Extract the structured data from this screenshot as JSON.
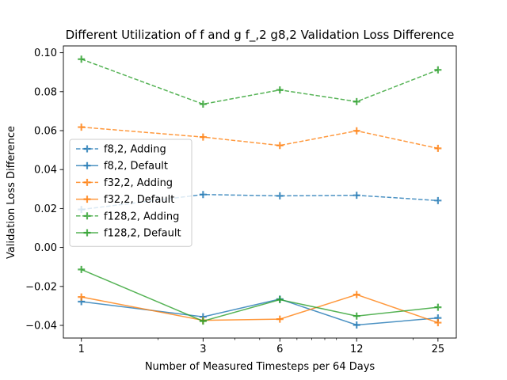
{
  "chart_data": {
    "type": "line",
    "title": "Different Utilization of f and g f_,2 g8,2 Validation Loss Difference",
    "xlabel": "Number of Measured Timesteps per 64 Days",
    "ylabel": "Validation Loss Difference",
    "x_scale": "log",
    "x": [
      1,
      3,
      6,
      12,
      25
    ],
    "x_tick_labels": [
      "1",
      "3",
      "6",
      "12",
      "25"
    ],
    "xlim": [
      0.85,
      29.5
    ],
    "ylim": [
      -0.0465,
      0.1035
    ],
    "y_ticks": [
      -0.04,
      -0.02,
      0.0,
      0.02,
      0.04,
      0.06,
      0.08,
      0.1
    ],
    "y_tick_labels": [
      "−0.04",
      "−0.02",
      "0.00",
      "0.02",
      "0.04",
      "0.06",
      "0.08",
      "0.10"
    ],
    "grid": false,
    "legend_position": "center-left",
    "series": [
      {
        "name": "f8,2, Adding",
        "color": "#1f77b4",
        "linestyle": "dashed",
        "marker": "plus",
        "values": [
          0.0195,
          0.0272,
          0.0265,
          0.0268,
          0.0241
        ]
      },
      {
        "name": "f8,2, Default",
        "color": "#1f77b4",
        "linestyle": "solid",
        "marker": "plus",
        "values": [
          -0.0278,
          -0.0356,
          -0.0265,
          -0.0398,
          -0.0362
        ]
      },
      {
        "name": "f32,2, Adding",
        "color": "#ff7f0e",
        "linestyle": "dashed",
        "marker": "plus",
        "values": [
          0.0618,
          0.0567,
          0.0524,
          0.0599,
          0.0509
        ]
      },
      {
        "name": "f32,2, Default",
        "color": "#ff7f0e",
        "linestyle": "solid",
        "marker": "plus",
        "values": [
          -0.0254,
          -0.0374,
          -0.0368,
          -0.0242,
          -0.0386
        ]
      },
      {
        "name": "f128,2, Adding",
        "color": "#2ca02c",
        "linestyle": "dashed",
        "marker": "plus",
        "values": [
          0.0967,
          0.0736,
          0.0809,
          0.0749,
          0.0912
        ]
      },
      {
        "name": "f128,2, Default",
        "color": "#2ca02c",
        "linestyle": "solid",
        "marker": "plus",
        "values": [
          -0.0113,
          -0.0378,
          -0.0268,
          -0.0352,
          -0.0307
        ]
      }
    ]
  }
}
